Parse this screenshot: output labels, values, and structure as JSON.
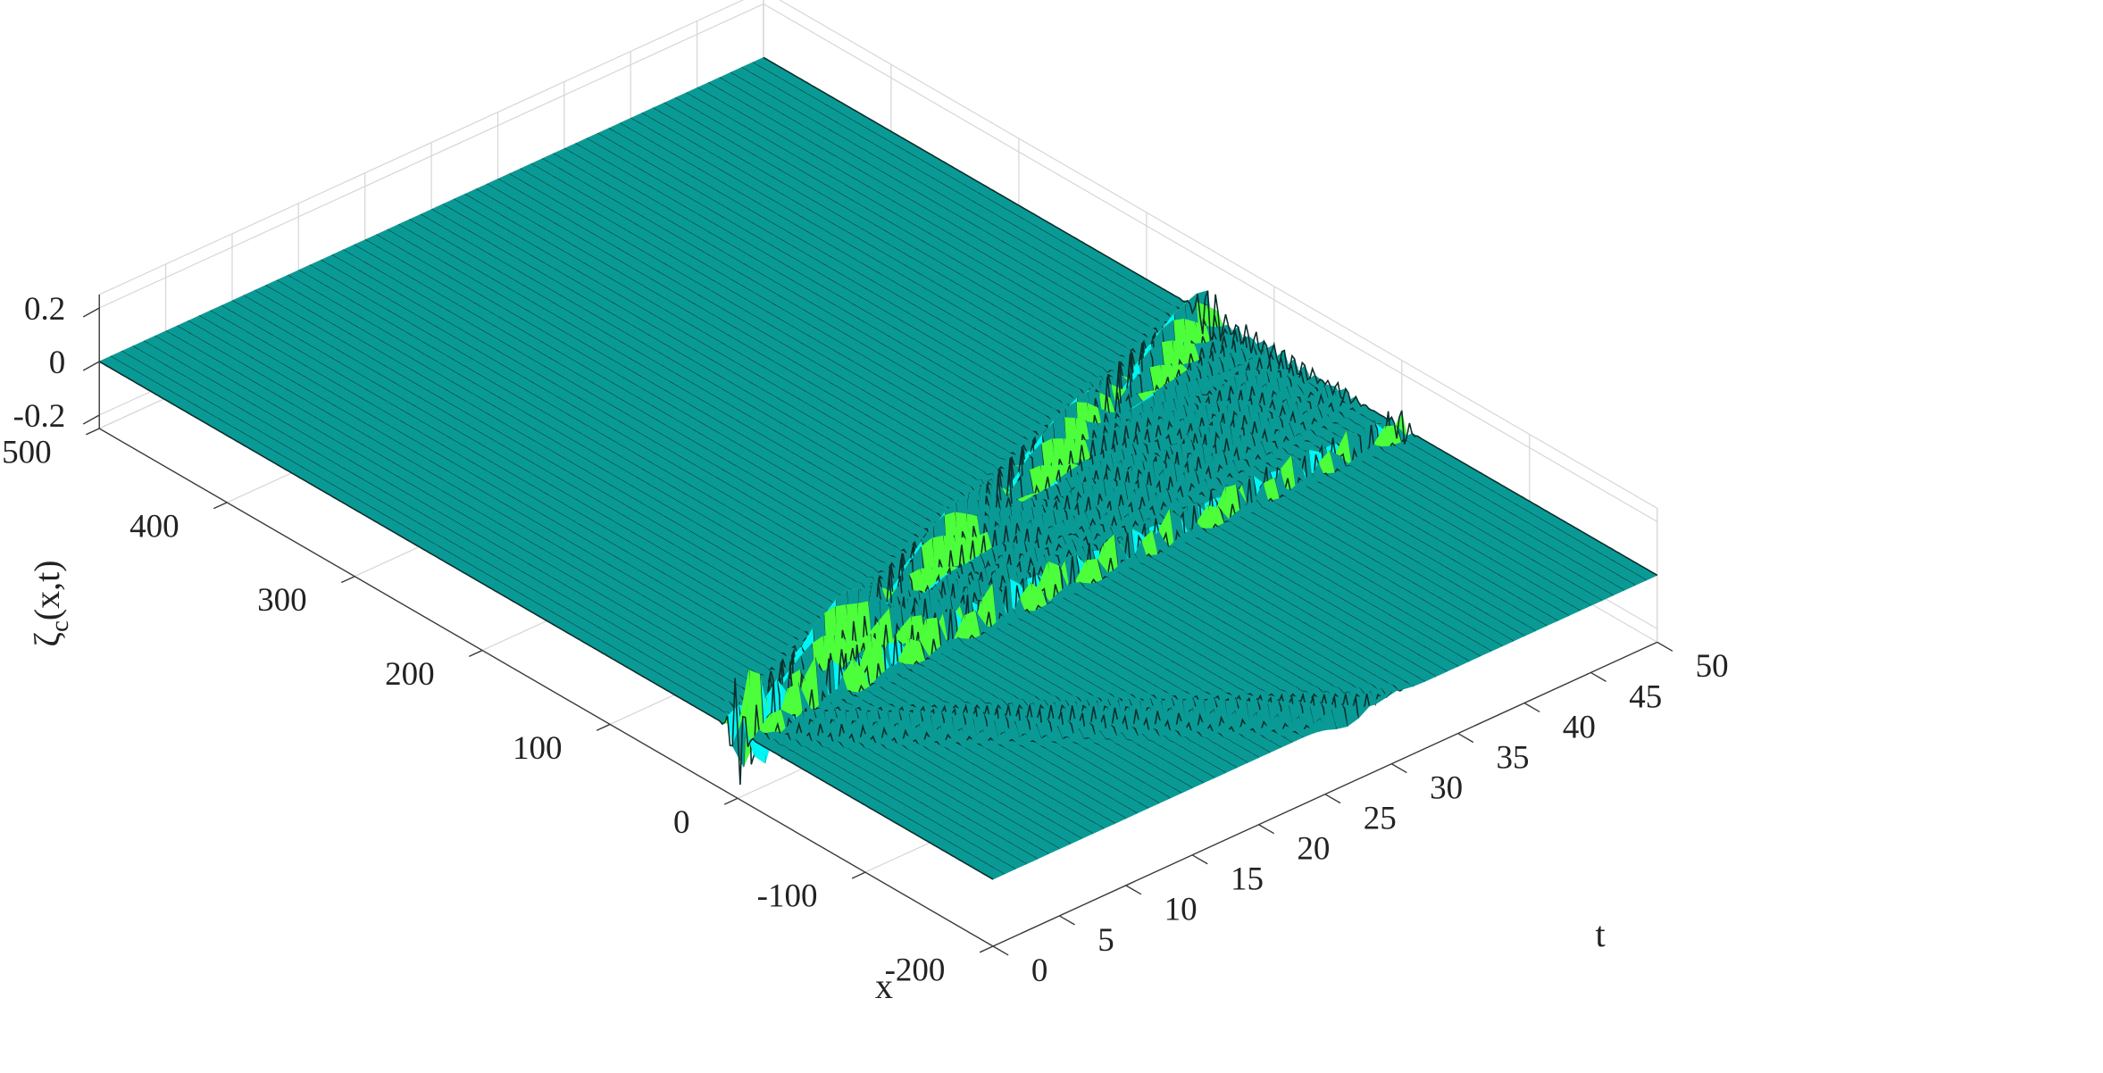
{
  "chart_data": {
    "type": "surface",
    "title": "",
    "xlabel": "x",
    "ylabel": "t",
    "zlabel_base": "ζ",
    "zlabel_sub": "c",
    "zlabel_tail": "(x,t)",
    "xlim": [
      -200,
      500
    ],
    "tlim": [
      0,
      50
    ],
    "zlim": [
      -0.25,
      0.25
    ],
    "x_ticks": [
      {
        "value": -200,
        "label": "-200"
      },
      {
        "value": -100,
        "label": "-100"
      },
      {
        "value": 0,
        "label": "0"
      },
      {
        "value": 100,
        "label": "100"
      },
      {
        "value": 200,
        "label": "200"
      },
      {
        "value": 300,
        "label": "300"
      },
      {
        "value": 400,
        "label": "400"
      },
      {
        "value": 500,
        "label": "500"
      }
    ],
    "t_ticks": [
      {
        "value": 0,
        "label": "0"
      },
      {
        "value": 5,
        "label": "5"
      },
      {
        "value": 10,
        "label": "10"
      },
      {
        "value": 15,
        "label": "15"
      },
      {
        "value": 20,
        "label": "20"
      },
      {
        "value": 25,
        "label": "25"
      },
      {
        "value": 30,
        "label": "30"
      },
      {
        "value": 35,
        "label": "35"
      },
      {
        "value": 40,
        "label": "40"
      },
      {
        "value": 45,
        "label": "45"
      },
      {
        "value": 50,
        "label": "50"
      }
    ],
    "z_ticks": [
      {
        "value": -0.2,
        "label": "-0.2"
      },
      {
        "value": 0,
        "label": "0"
      },
      {
        "value": 0.2,
        "label": "0.2"
      }
    ],
    "grid": true,
    "colormap": [
      "#3b0cc8",
      "#1f8bf0",
      "#00f5f5",
      "#4cff3a",
      "#ffe21a",
      "#ff3f1a"
    ],
    "surface_color": "#0a9a96",
    "source_x": 0,
    "features": [
      {
        "name": "",
        "kind": "left-moving packet",
        "speed": -7.2,
        "amplitude": 0.05
      },
      {
        "name": "",
        "kind": "right-moving packet",
        "speed": 3.0,
        "amplitude": 0.12
      },
      {
        "name": "",
        "kind": "right-moving packet",
        "speed": 2.4,
        "amplitude": 0.05
      },
      {
        "name": "",
        "kind": "right-moving packet",
        "speed": 1.85,
        "amplitude": 0.04
      },
      {
        "name": "",
        "kind": "right-moving packet",
        "speed": 1.4,
        "amplitude": 0.04
      },
      {
        "name": "",
        "kind": "right-moving packet",
        "speed": 1.05,
        "amplitude": 0.04
      }
    ]
  }
}
